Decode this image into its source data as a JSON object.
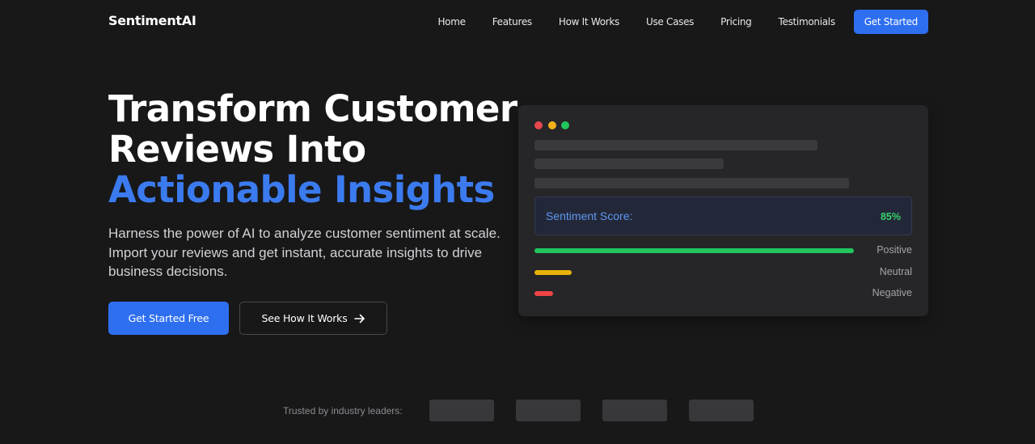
{
  "brand": {
    "name": "SentimentAI"
  },
  "nav": {
    "links": [
      "Home",
      "Features",
      "How It Works",
      "Use Cases",
      "Pricing",
      "Testimonials"
    ],
    "cta": "Get Started"
  },
  "hero": {
    "title_line1": "Transform Customer",
    "title_line2": "Reviews Into",
    "title_accent": "Actionable Insights",
    "subtitle": "Harness the power of AI to analyze customer sentiment at scale. Import your reviews and get instant, accurate insights to drive business decisions.",
    "primary_button": "Get Started Free",
    "secondary_button": "See How It Works",
    "secondary_icon": "arrow-right-icon"
  },
  "preview_card": {
    "window_dots": [
      "#e5484d",
      "#f5b01a",
      "#22c55e"
    ],
    "score_label": "Sentiment Score:",
    "score_value": "85%",
    "bars": [
      {
        "label": "Positive",
        "value": 0.85,
        "color": "#22c55e"
      },
      {
        "label": "Neutral",
        "value": 0.1,
        "color": "#eab308"
      },
      {
        "label": "Negative",
        "value": 0.05,
        "color": "#ef4444"
      }
    ]
  },
  "trusted": {
    "label": "Trusted by industry leaders:",
    "logo_count": 4
  },
  "colors": {
    "background": "#181819",
    "accent": "#2e6ff0",
    "title_accent": "#3b7bef",
    "card": "#262628"
  }
}
